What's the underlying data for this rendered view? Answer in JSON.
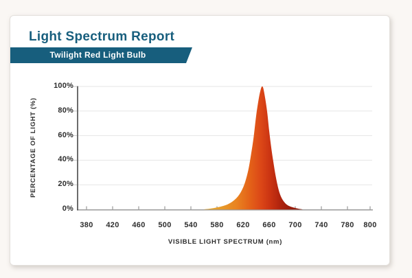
{
  "header": {
    "title": "Light Spectrum Report",
    "subtitle": "Twilight Red Light Bulb"
  },
  "colors": {
    "accent_teal": "#175E7D",
    "page_background": "#FAF7F4",
    "card_background": "#FFFFFF",
    "gridline": "#E5E5E5",
    "x_axis": "#9A9A9A",
    "y_axis": "#474747",
    "y_tick": "#C8C8C8",
    "label_text": "#2D2D2D",
    "curve_gradient": [
      {
        "nm": 560,
        "color": "#E3AE3C"
      },
      {
        "nm": 585,
        "color": "#E69C2B"
      },
      {
        "nm": 610,
        "color": "#E98320"
      },
      {
        "nm": 632,
        "color": "#E35F18"
      },
      {
        "nm": 648,
        "color": "#DB4617"
      },
      {
        "nm": 662,
        "color": "#CA3312"
      },
      {
        "nm": 676,
        "color": "#B1240E"
      },
      {
        "nm": 692,
        "color": "#9A1D0C"
      },
      {
        "nm": 711,
        "color": "#8C1A0B"
      }
    ]
  },
  "chart_data": {
    "type": "area",
    "title": "Light Spectrum Report",
    "series_name": "Twilight Red Light Bulb spectrum",
    "xlabel": "VISIBLE LIGHT SPECTRUM (nm)",
    "ylabel": "PERCENTAGE OF LIGHT (%)",
    "xlim": [
      380,
      800
    ],
    "ylim": [
      0,
      100
    ],
    "grid": "horizontal",
    "legend": "none",
    "x_tick_labels": [
      "380",
      "420",
      "460",
      "500",
      "540",
      "580",
      "620",
      "660",
      "700",
      "740",
      "780",
      "800"
    ],
    "y_tick_labels": [
      "0%",
      "20%",
      "40%",
      "60%",
      "80%",
      "100%"
    ],
    "y_tick_values": [
      0,
      20,
      40,
      60,
      80,
      100
    ],
    "peak_nm": 649,
    "peak_percent": 100,
    "points_nm_percent": [
      [
        560,
        0
      ],
      [
        570,
        0.6
      ],
      [
        580,
        1.6
      ],
      [
        588,
        2.6
      ],
      [
        596,
        4
      ],
      [
        604,
        6.5
      ],
      [
        612,
        10.5
      ],
      [
        618,
        15.5
      ],
      [
        623,
        22
      ],
      [
        628,
        32
      ],
      [
        632,
        44
      ],
      [
        636,
        58
      ],
      [
        640,
        76
      ],
      [
        644,
        90
      ],
      [
        647,
        97.5
      ],
      [
        649,
        100
      ],
      [
        651,
        98.5
      ],
      [
        654,
        90
      ],
      [
        657,
        79
      ],
      [
        660,
        64
      ],
      [
        663,
        51
      ],
      [
        666,
        40
      ],
      [
        670,
        27
      ],
      [
        674,
        17
      ],
      [
        678,
        10.5
      ],
      [
        683,
        6
      ],
      [
        688,
        3.5
      ],
      [
        694,
        2
      ],
      [
        700,
        1.1
      ],
      [
        706,
        0.4
      ],
      [
        711,
        0
      ]
    ]
  }
}
